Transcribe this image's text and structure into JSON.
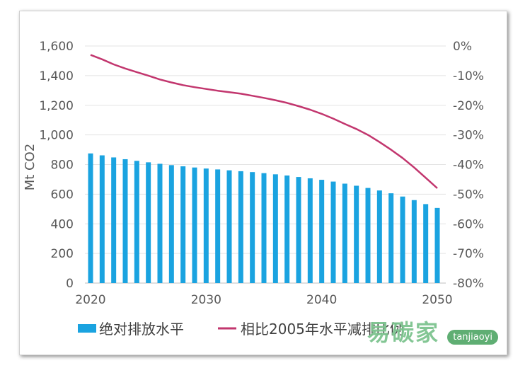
{
  "chart_data": {
    "type": "bar+line",
    "title": "",
    "ylabel": "Mt CO2",
    "ylim": [
      0,
      1600
    ],
    "y2lim": [
      -80,
      0
    ],
    "yticks": [
      "0",
      "200",
      "400",
      "600",
      "800",
      "1,000",
      "1,200",
      "1,400",
      "1,600"
    ],
    "y2ticks": [
      "-80%",
      "-70%",
      "-60%",
      "-50%",
      "-40%",
      "-30%",
      "-20%",
      "-10%",
      "0%"
    ],
    "xticks": [
      "2020",
      "2030",
      "2040",
      "2050"
    ],
    "x": [
      2020,
      2021,
      2022,
      2023,
      2024,
      2025,
      2026,
      2027,
      2028,
      2029,
      2030,
      2031,
      2032,
      2033,
      2034,
      2035,
      2036,
      2037,
      2038,
      2039,
      2040,
      2041,
      2042,
      2043,
      2044,
      2045,
      2046,
      2047,
      2048,
      2049,
      2050
    ],
    "series": [
      {
        "name": "绝对排放水平",
        "type": "bar",
        "color": "#1aa3e0",
        "values": [
          875,
          862,
          848,
          836,
          825,
          815,
          805,
          796,
          788,
          780,
          773,
          767,
          761,
          755,
          749,
          742,
          734,
          726,
          716,
          707,
          697,
          685,
          671,
          657,
          642,
          625,
          606,
          584,
          560,
          533,
          507
        ]
      },
      {
        "name": "相比2005年水平减排比例",
        "type": "line",
        "axis": "right",
        "color": "#c2366e",
        "values": [
          -3.0,
          -4.5,
          -6.2,
          -7.6,
          -8.8,
          -10.0,
          -11.3,
          -12.3,
          -13.2,
          -13.9,
          -14.5,
          -15.1,
          -15.6,
          -16.1,
          -16.8,
          -17.5,
          -18.3,
          -19.2,
          -20.3,
          -21.5,
          -22.9,
          -24.5,
          -26.3,
          -28.0,
          -30.0,
          -32.4,
          -35.0,
          -37.8,
          -41.0,
          -44.5,
          -48.0
        ]
      }
    ],
    "legend_position": "bottom",
    "grid": true
  },
  "watermark": {
    "text": "易碳家",
    "badge": "tanjiaoyi"
  }
}
